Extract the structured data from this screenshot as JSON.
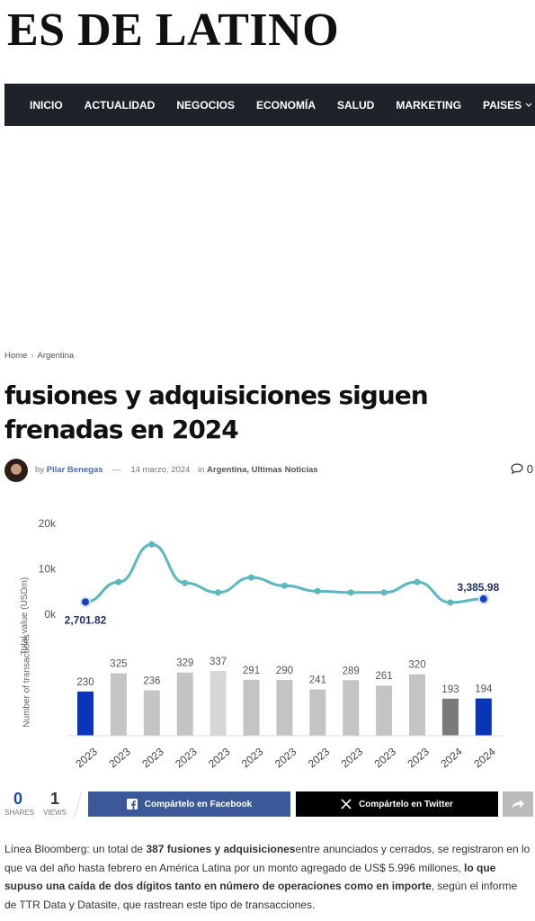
{
  "header": {
    "logo": "ES DE LATINO"
  },
  "nav": [
    "INICIO",
    "ACTUALIDAD",
    "NEGOCIOS",
    "ECONOMÍA",
    "SALUD",
    "MARKETING",
    "PAISES"
  ],
  "breadcrumb": [
    "Home",
    "Argentina"
  ],
  "article": {
    "title": "fusiones y adquisiciones siguen frenadas en 2024",
    "by": "by",
    "author": "Pilar Benegas",
    "date": "14 marzo, 2024",
    "in": "in",
    "categories": [
      "Argentina",
      "Ultimas Noticias"
    ],
    "comments": "0"
  },
  "chart_data": [
    {
      "type": "line",
      "ylabel": "Total value (USDm)",
      "color": "#5bb8bf",
      "point_color": "#1240c4",
      "values": [
        2701.82,
        7100,
        15400,
        6900,
        4800,
        8100,
        6300,
        5100,
        4800,
        4800,
        7100,
        2600,
        3385.98
      ],
      "value_labels": [
        "2,701.82",
        null,
        null,
        null,
        null,
        null,
        null,
        null,
        null,
        null,
        null,
        null,
        "3,385.98"
      ],
      "ylim": [
        0,
        20000
      ],
      "yticks": [
        {
          "value": 0,
          "label": "0k"
        },
        {
          "value": 10000,
          "label": "10k"
        },
        {
          "value": 20000,
          "label": "20k"
        }
      ]
    },
    {
      "type": "bar",
      "ylabel": "Number of transactions",
      "categories": [
        "2023",
        "2023",
        "2023",
        "2023",
        "2023",
        "2023",
        "2023",
        "2023",
        "2023",
        "2023",
        "2023",
        "2024",
        "2024"
      ],
      "values": [
        230,
        325,
        236,
        329,
        337,
        291,
        290,
        241,
        289,
        261,
        320,
        193,
        194
      ],
      "colors": [
        "#0a35b8",
        "#c4c4c4",
        "#c4c4c4",
        "#c4c4c4",
        "#d6d6d6",
        "#c4c4c4",
        "#c4c4c4",
        "#c4c4c4",
        "#c4c4c4",
        "#c4c4c4",
        "#c4c4c4",
        "#7a7a7a",
        "#0a35b8"
      ]
    }
  ],
  "share": {
    "shares": "0",
    "shares_label": "SHARES",
    "views": "1",
    "views_label": "VIEWS",
    "facebook": "Compártelo en Facebook",
    "twitter": "Compártelo en Twitter"
  },
  "body": [
    {
      "text": "Línea Bloomberg: un total de ",
      "bold": false
    },
    {
      "text": "387 fusiones y adquisiciones",
      "bold": true
    },
    {
      "text": "entre anunciados y cerrados, se registraron en lo que va del año hasta febrero en América Latina por un monto agregado de US$ 5.996 millones, ",
      "bold": false
    },
    {
      "text": "lo que supuso una caída de dos dígitos tanto en número de operaciones como en importe",
      "bold": true
    },
    {
      "text": ", según el informe de TTR Data y Datasite, que rastrean este tipo de transacciones.",
      "bold": false
    }
  ]
}
